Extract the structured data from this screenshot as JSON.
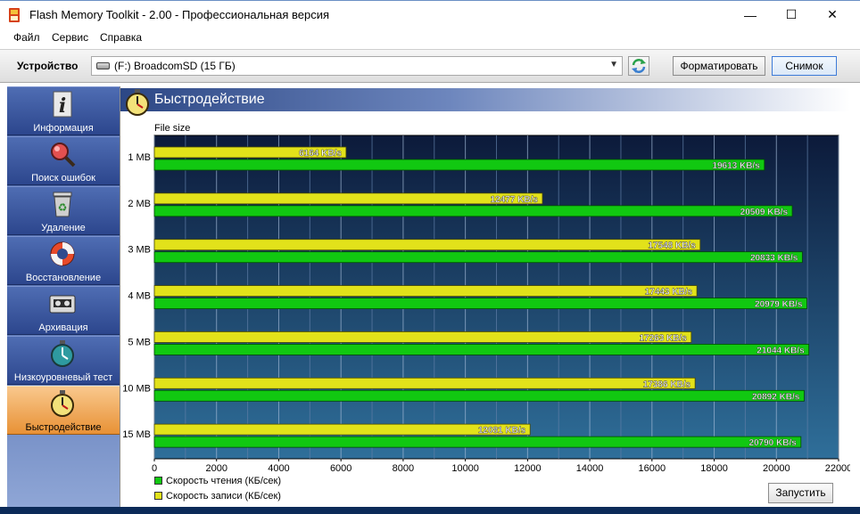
{
  "window": {
    "title": "Flash Memory Toolkit - 2.00 - Профессиональная версия",
    "minimize_glyph": "—",
    "maximize_glyph": "☐",
    "close_glyph": "✕"
  },
  "menu": {
    "items": [
      "Файл",
      "Сервис",
      "Справка"
    ]
  },
  "toolbar": {
    "device_label": "Устройство",
    "device_value": "(F:) BroadcomSD (15 ГБ)",
    "format_label": "Форматировать",
    "snapshot_label": "Снимок"
  },
  "sidebar": {
    "items": [
      {
        "label": "Информация",
        "icon": "info-icon"
      },
      {
        "label": "Поиск ошибок",
        "icon": "magnifier-icon"
      },
      {
        "label": "Удаление",
        "icon": "recycle-bin-icon"
      },
      {
        "label": "Восстановление",
        "icon": "lifebuoy-icon"
      },
      {
        "label": "Архивация",
        "icon": "tape-icon"
      },
      {
        "label": "Низкоуровневый тест",
        "icon": "stopwatch-icon"
      },
      {
        "label": "Быстродействие",
        "icon": "stopwatch-icon",
        "active": true
      }
    ]
  },
  "main": {
    "title": "Быстродействие",
    "run_label": "Запустить",
    "legend": {
      "read": "Скорость чтения (КБ/сек)",
      "write": "Скорость записи (КБ/сек)"
    }
  },
  "colors": {
    "read": "#11c811",
    "write": "#e2e21a",
    "plot_bg_top": "#0c1a3a",
    "plot_bg_bottom": "#2f6f9a"
  },
  "chart_data": {
    "type": "bar",
    "orientation": "horizontal",
    "ylabel": "File size",
    "categories": [
      "1 MB",
      "2 MB",
      "3 MB",
      "4 MB",
      "5 MB",
      "10 MB",
      "15 MB"
    ],
    "series": [
      {
        "name": "Скорость записи (КБ/сек)",
        "values": [
          6164,
          12477,
          17548,
          17443,
          17263,
          17386,
          12081
        ],
        "label_suffix": " KB/s"
      },
      {
        "name": "Скорость чтения (КБ/сек)",
        "values": [
          19613,
          20509,
          20833,
          20979,
          21044,
          20892,
          20790
        ],
        "label_suffix": " KB/s"
      }
    ],
    "xlim": [
      0,
      22000
    ],
    "xticks": [
      0,
      2000,
      4000,
      6000,
      8000,
      10000,
      12000,
      14000,
      16000,
      18000,
      20000,
      22000
    ],
    "grid": true
  }
}
